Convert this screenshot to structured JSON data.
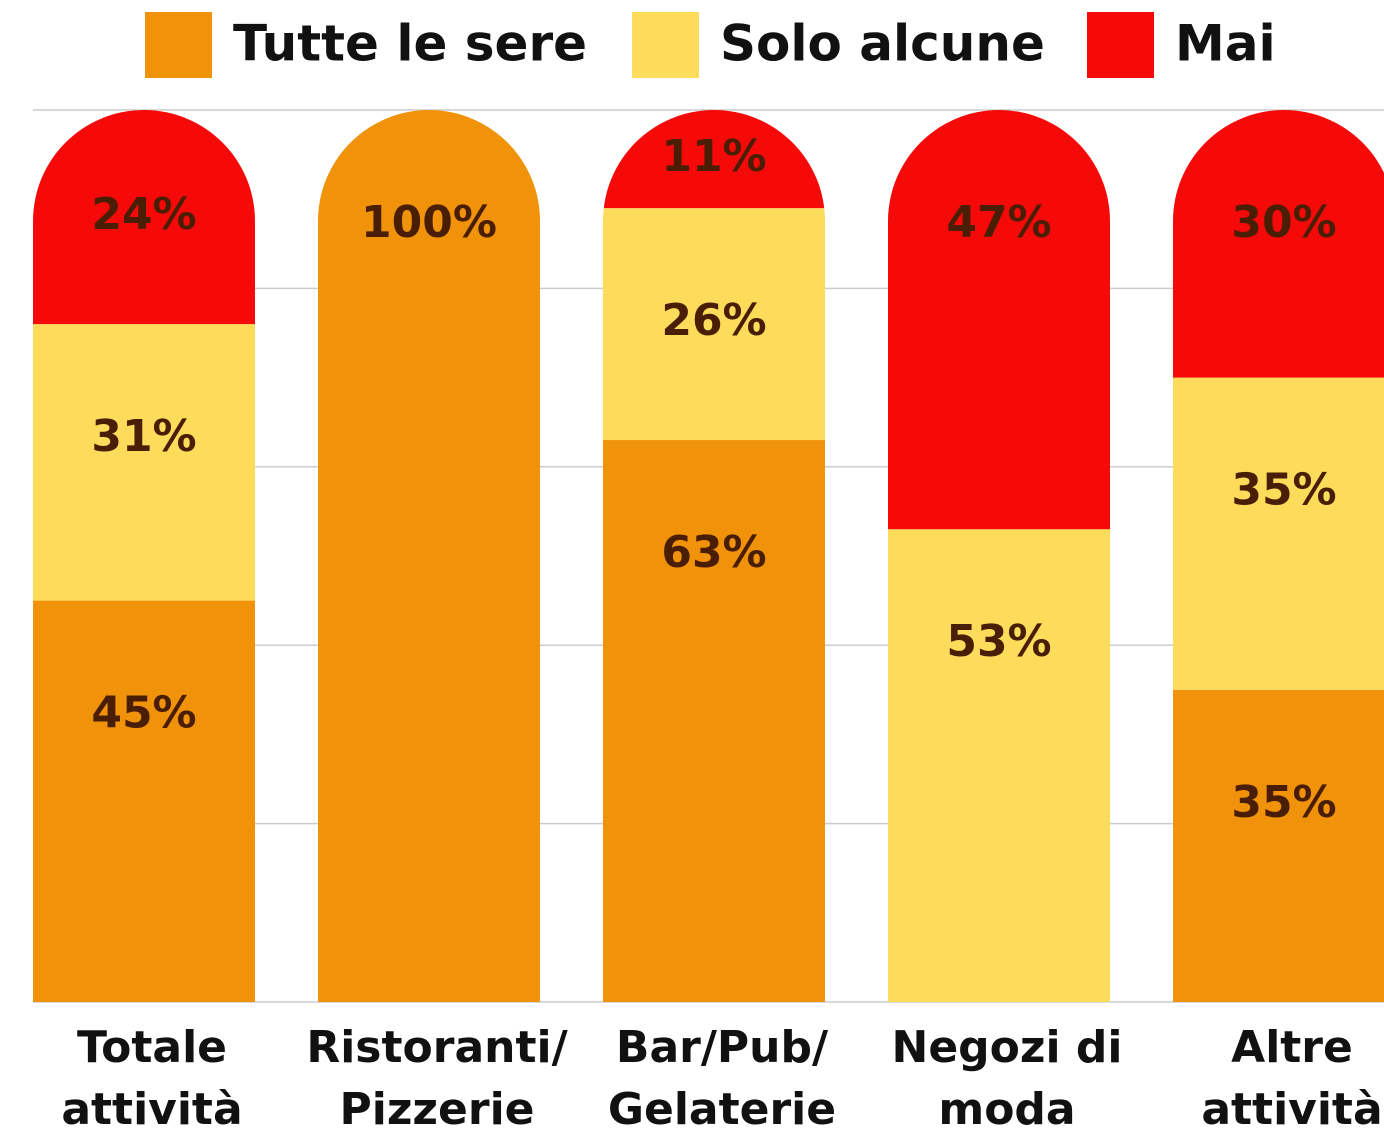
{
  "chart_data": {
    "type": "stacked_bar",
    "categories": [
      "Totale\nattività",
      "Ristoranti/\nPizzerie",
      "Bar/Pub/\nGelaterie",
      "Negozi di\nmoda",
      "Altre\nattività"
    ],
    "series": [
      {
        "name": "Tutte le sere",
        "color": "#f0920a",
        "values": [
          45,
          100,
          63,
          0,
          35
        ],
        "value_labels": [
          "45%",
          "100%",
          "63%",
          null,
          "35%"
        ]
      },
      {
        "name": "Solo alcune",
        "color": "#fddc5c",
        "values": [
          31,
          0,
          26,
          53,
          35
        ],
        "value_labels": [
          "31%",
          null,
          "26%",
          "53%",
          "35%"
        ]
      },
      {
        "name": "Mai",
        "color": "#f60909",
        "values": [
          24,
          0,
          11,
          47,
          30
        ],
        "value_labels": [
          "24%",
          null,
          "11%",
          "47%",
          "30%"
        ]
      }
    ],
    "ylim": [
      0,
      100
    ],
    "yticks": [
      0,
      20,
      40,
      60,
      80,
      100
    ],
    "grid": true,
    "legend": "top"
  }
}
